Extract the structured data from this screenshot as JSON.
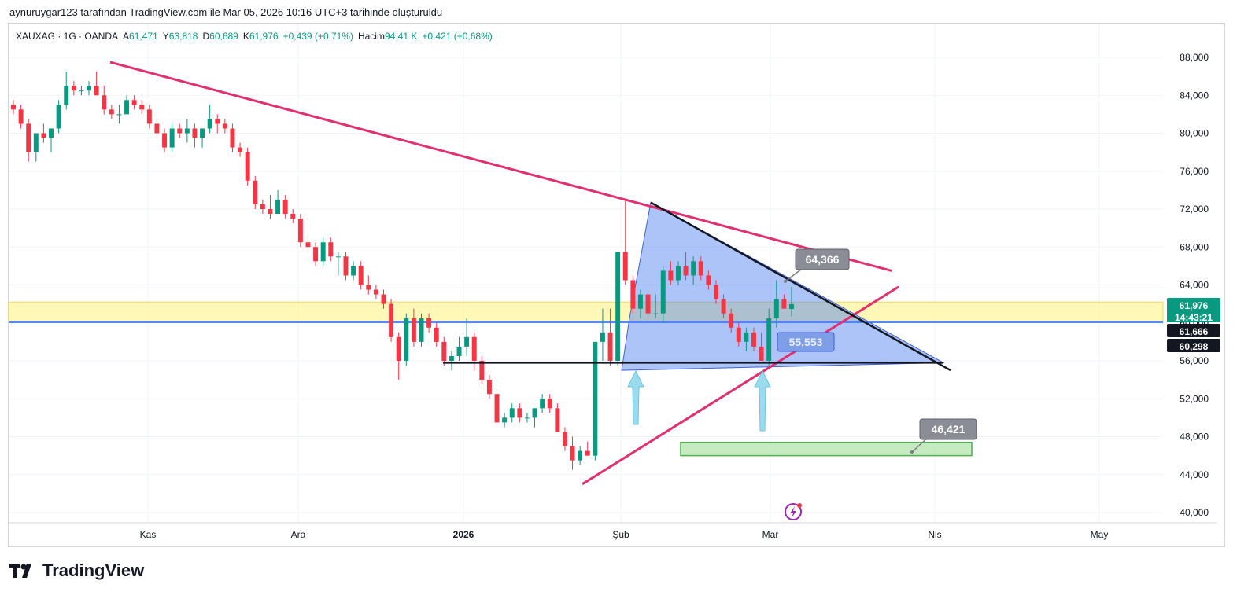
{
  "header": {
    "caption": "aynuruygar123 tarafından TradingView.com ile Mar 05, 2026 10:16 UTC+3 tarihinde oluşturuldu"
  },
  "legend": {
    "symbol": "XAUXAG · 1G · OANDA",
    "open_label": "A",
    "open_value": "61,471",
    "high_label": "Y",
    "high_value": "63,818",
    "low_label": "D",
    "low_value": "60,689",
    "close_label": "K",
    "close_value": "61,976",
    "change": "+0,439 (+0,71%)",
    "volume_label": "Hacim",
    "volume_value": "94,41 K",
    "volume_change": "+0,421 (+0,68%)"
  },
  "logo": {
    "text": "TradingView",
    "icon": "tradingview-logo-icon"
  },
  "colors": {
    "up": "#089981",
    "down": "#f23645",
    "pink_line": "#e0306f",
    "triangle_fill": "#4a7cf0",
    "yellow_zone": "#fff59d",
    "green_zone": "#b8e6b0",
    "blue_line": "#2962ff",
    "arrow": "#8fd8ec"
  },
  "annotations": {
    "top_label": "64,366",
    "mid_label": "55,553",
    "low_label": "46,421"
  },
  "price_tags": {
    "current": "61,976",
    "countdown": "14:43:21",
    "level_1": "61,666",
    "level_2": "60,298"
  },
  "chart_data": {
    "type": "candlestick",
    "title": "",
    "x_ticks": [
      "Kas",
      "Ara",
      "2026",
      "Şub",
      "Mar",
      "Nis",
      "May"
    ],
    "y_ticks": [
      "88,000",
      "84,000",
      "80,000",
      "76,000",
      "72,000",
      "68,000",
      "64,000",
      "60,000",
      "56,000",
      "52,000",
      "48,000",
      "44,000",
      "40,000"
    ],
    "ylim": [
      39,
      90
    ],
    "grid": true,
    "candles": [
      [
        83.0,
        83.5,
        82.0,
        82.5
      ],
      [
        82.5,
        83.0,
        80.5,
        81.0
      ],
      [
        81.0,
        81.5,
        77.0,
        78.0
      ],
      [
        78.0,
        80.0,
        77.0,
        80.0
      ],
      [
        80.0,
        81.0,
        79.0,
        79.5
      ],
      [
        79.5,
        80.5,
        78.0,
        80.5
      ],
      [
        80.5,
        83.5,
        80.0,
        83.0
      ],
      [
        83.0,
        86.5,
        82.5,
        85.0
      ],
      [
        85.0,
        85.5,
        84.0,
        84.5
      ],
      [
        84.5,
        85.0,
        84.0,
        84.5
      ],
      [
        84.5,
        85.5,
        84.0,
        85.0
      ],
      [
        85.0,
        86.5,
        84.5,
        84.0
      ],
      [
        84.0,
        85.0,
        82.0,
        82.5
      ],
      [
        82.5,
        83.0,
        81.5,
        82.0
      ],
      [
        82.0,
        83.0,
        81.0,
        82.0
      ],
      [
        82.0,
        84.0,
        82.0,
        83.5
      ],
      [
        83.5,
        84.0,
        82.5,
        83.0
      ],
      [
        83.0,
        83.5,
        82.0,
        82.5
      ],
      [
        82.5,
        83.0,
        80.5,
        81.0
      ],
      [
        81.0,
        81.5,
        79.5,
        80.0
      ],
      [
        80.0,
        80.5,
        78.0,
        78.5
      ],
      [
        78.5,
        81.0,
        78.0,
        80.5
      ],
      [
        80.5,
        81.0,
        79.5,
        80.0
      ],
      [
        80.0,
        81.5,
        79.0,
        80.5
      ],
      [
        80.5,
        81.0,
        78.5,
        79.5
      ],
      [
        79.5,
        80.5,
        78.5,
        80.5
      ],
      [
        80.5,
        83.0,
        80.0,
        81.5
      ],
      [
        81.5,
        82.0,
        80.0,
        81.0
      ],
      [
        81.0,
        81.5,
        80.0,
        80.5
      ],
      [
        80.5,
        81.0,
        78.0,
        78.5
      ],
      [
        78.5,
        79.0,
        77.5,
        78.0
      ],
      [
        78.0,
        78.5,
        74.5,
        75.0
      ],
      [
        75.0,
        75.5,
        72.0,
        72.5
      ],
      [
        72.5,
        73.0,
        71.5,
        72.0
      ],
      [
        72.0,
        73.5,
        71.0,
        71.5
      ],
      [
        71.5,
        74.0,
        71.5,
        73.0
      ],
      [
        73.0,
        73.5,
        71.0,
        71.5
      ],
      [
        71.5,
        72.0,
        70.5,
        71.0
      ],
      [
        71.0,
        71.5,
        68.0,
        68.5
      ],
      [
        68.5,
        69.0,
        67.5,
        68.0
      ],
      [
        68.0,
        68.5,
        66.0,
        66.5
      ],
      [
        66.5,
        69.0,
        66.0,
        68.5
      ],
      [
        68.5,
        69.0,
        66.5,
        67.0
      ],
      [
        67.0,
        67.5,
        65.0,
        67.0
      ],
      [
        67.0,
        67.5,
        64.5,
        65.0
      ],
      [
        65.0,
        66.5,
        64.5,
        66.0
      ],
      [
        66.0,
        66.5,
        63.5,
        64.0
      ],
      [
        64.0,
        65.0,
        63.0,
        63.5
      ],
      [
        63.5,
        64.0,
        62.5,
        63.0
      ],
      [
        63.0,
        63.5,
        61.5,
        62.0
      ],
      [
        62.0,
        62.5,
        58.0,
        58.5
      ],
      [
        58.5,
        59.0,
        54.0,
        56.0
      ],
      [
        56.0,
        61.0,
        55.5,
        60.5
      ],
      [
        60.5,
        61.5,
        57.5,
        58.0
      ],
      [
        58.0,
        61.0,
        57.5,
        60.5
      ],
      [
        60.5,
        61.0,
        59.0,
        59.5
      ],
      [
        59.5,
        60.0,
        57.5,
        58.0
      ],
      [
        58.0,
        58.5,
        55.5,
        56.0
      ],
      [
        56.0,
        57.0,
        55.0,
        56.5
      ],
      [
        56.5,
        58.5,
        56.0,
        57.5
      ],
      [
        57.5,
        60.5,
        56.5,
        58.5
      ],
      [
        58.5,
        59.0,
        55.0,
        56.0
      ],
      [
        56.0,
        56.5,
        53.5,
        54.0
      ],
      [
        54.0,
        54.5,
        52.0,
        52.5
      ],
      [
        52.5,
        53.0,
        49.5,
        49.5
      ],
      [
        49.5,
        50.5,
        49.0,
        50.0
      ],
      [
        50.0,
        51.5,
        49.5,
        51.0
      ],
      [
        51.0,
        51.5,
        49.5,
        50.0
      ],
      [
        50.0,
        50.5,
        49.5,
        50.0
      ],
      [
        50.0,
        51.0,
        49.0,
        51.0
      ],
      [
        51.0,
        52.5,
        50.5,
        52.0
      ],
      [
        52.0,
        52.5,
        50.5,
        51.0
      ],
      [
        51.0,
        51.5,
        48.5,
        48.5
      ],
      [
        48.5,
        49.0,
        46.5,
        47.0
      ],
      [
        47.0,
        48.0,
        44.5,
        45.5
      ],
      [
        45.5,
        47.0,
        45.0,
        46.5
      ],
      [
        46.5,
        47.5,
        46.0,
        46.0
      ],
      [
        46.0,
        58.0,
        45.5,
        58.0
      ],
      [
        58.0,
        61.5,
        56.0,
        59.0
      ],
      [
        59.0,
        61.5,
        55.5,
        56.0
      ],
      [
        56.0,
        67.5,
        55.5,
        67.5
      ],
      [
        67.5,
        73.0,
        64.0,
        64.5
      ],
      [
        64.5,
        65.0,
        61.0,
        61.5
      ],
      [
        61.5,
        63.5,
        60.5,
        63.0
      ],
      [
        63.0,
        63.5,
        60.5,
        61.0
      ],
      [
        61.0,
        63.0,
        60.5,
        61.0
      ],
      [
        61.0,
        66.0,
        60.0,
        65.5
      ],
      [
        65.5,
        66.5,
        64.0,
        64.5
      ],
      [
        64.5,
        66.5,
        64.0,
        66.0
      ],
      [
        66.0,
        67.5,
        64.5,
        65.0
      ],
      [
        65.0,
        67.0,
        64.0,
        66.5
      ],
      [
        66.5,
        67.0,
        64.5,
        65.0
      ],
      [
        65.0,
        65.5,
        63.5,
        64.0
      ],
      [
        64.0,
        64.5,
        62.0,
        62.5
      ],
      [
        62.5,
        63.0,
        60.5,
        61.0
      ],
      [
        61.0,
        61.5,
        59.0,
        59.5
      ],
      [
        59.5,
        60.0,
        57.5,
        58.0
      ],
      [
        58.0,
        59.5,
        57.0,
        59.0
      ],
      [
        59.0,
        59.5,
        57.0,
        57.5
      ],
      [
        57.5,
        59.0,
        56.0,
        56.0
      ],
      [
        56.0,
        61.5,
        55.5,
        60.5
      ],
      [
        60.5,
        64.5,
        59.5,
        62.5
      ],
      [
        62.5,
        63.0,
        61.5,
        61.5
      ],
      [
        61.471,
        63.818,
        60.689,
        61.976
      ]
    ]
  }
}
